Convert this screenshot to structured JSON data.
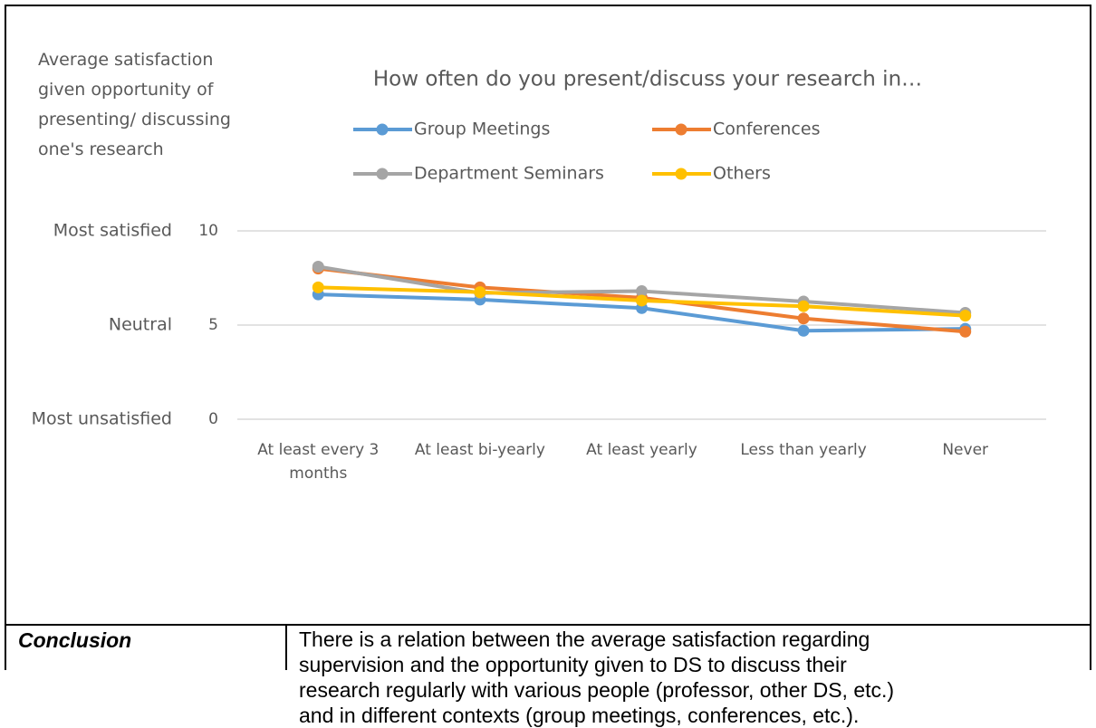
{
  "chart_data": {
    "type": "line",
    "title": "How often do you present/discuss your research in…",
    "y_label": "Average satisfaction given opportunity of presenting/ discussing one's research",
    "categories": [
      "At least every 3 months",
      "At least bi-yearly",
      "At least yearly",
      "Less than yearly",
      "Never"
    ],
    "series": [
      {
        "name": "Group Meetings",
        "color": "#5b9bd5",
        "values": [
          6.63,
          6.35,
          5.9,
          4.7,
          4.8
        ]
      },
      {
        "name": "Conferences",
        "color": "#ed7d31",
        "values": [
          8.0,
          7.0,
          6.45,
          5.35,
          4.65
        ]
      },
      {
        "name": "Department Seminars",
        "color": "#a5a5a5",
        "values": [
          8.1,
          6.7,
          6.8,
          6.25,
          5.65
        ]
      },
      {
        "name": "Others",
        "color": "#ffc000",
        "values": [
          7.0,
          6.75,
          6.3,
          6.0,
          5.5
        ]
      }
    ],
    "ylim": [
      0,
      10
    ],
    "yticks": [
      0,
      5,
      10
    ],
    "ytick_names": [
      "Most unsatisfied",
      "Neutral",
      "Most satisfied"
    ],
    "grid": true
  },
  "conclusion": {
    "heading": "Conclusion",
    "lines": [
      "There is a relation between the average satisfaction regarding",
      "supervision and the opportunity given to DS to discuss their",
      "research regularly with various people (professor, other DS, etc.)",
      "and in different contexts (group meetings, conferences, etc.)."
    ]
  }
}
